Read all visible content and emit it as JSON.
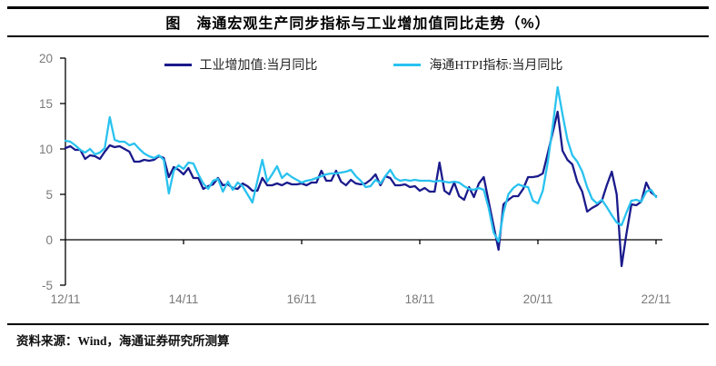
{
  "title": "图　海通宏观生产同步指标与工业增加值同比走势（%）",
  "source_note": "资料来源：Wind，海通证券研究所测算",
  "colors": {
    "industrial_line": "#1a1a8c",
    "htpi_line": "#29c2ef",
    "axis": "#000000",
    "tick_label": "#7a7a7a"
  },
  "legend": {
    "items": [
      {
        "label": "工业增加值:当月同比",
        "color": "#1a1a8c"
      },
      {
        "label": "海通HTPI指标:当月同比",
        "color": "#29c2ef"
      }
    ]
  },
  "chart_data": {
    "type": "line",
    "title": "海通宏观生产同步指标与工业增加值同比走势（%）",
    "x_start": "2012-11",
    "x_end": "2022-11",
    "x_frequency": "monthly",
    "x_tick_labels": [
      "12/11",
      "14/11",
      "16/11",
      "18/11",
      "20/11",
      "22/11"
    ],
    "y_ticks": [
      20,
      15,
      10,
      5,
      0,
      -5
    ],
    "ylim": [
      -5,
      20
    ],
    "grid": "zero-line-only",
    "legend_position": "top-center",
    "series": [
      {
        "id": "industrial",
        "name": "工业增加值:当月同比",
        "color": "#1a1a8c",
        "values": [
          10.1,
          10.3,
          9.9,
          9.9,
          8.9,
          9.3,
          9.2,
          8.9,
          9.7,
          10.4,
          10.2,
          10.3,
          10.0,
          9.7,
          8.6,
          8.6,
          8.8,
          8.7,
          8.8,
          9.2,
          9.0,
          6.9,
          8.0,
          7.7,
          7.2,
          7.9,
          6.8,
          6.8,
          5.6,
          5.9,
          6.1,
          6.8,
          6.0,
          6.1,
          5.7,
          5.6,
          6.2,
          5.9,
          5.4,
          5.4,
          6.8,
          6.0,
          6.0,
          6.2,
          6.0,
          6.3,
          6.1,
          6.1,
          6.2,
          6.0,
          6.3,
          6.3,
          7.6,
          6.5,
          6.5,
          7.6,
          6.4,
          6.0,
          6.6,
          6.2,
          6.1,
          6.2,
          6.6,
          7.2,
          6.0,
          7.0,
          6.8,
          6.0,
          6.0,
          6.1,
          5.8,
          5.9,
          5.4,
          5.7,
          5.3,
          5.3,
          8.5,
          5.4,
          5.0,
          6.3,
          4.8,
          4.4,
          5.8,
          4.7,
          6.2,
          6.9,
          4.2,
          1.5,
          -1.1,
          3.9,
          4.4,
          4.8,
          4.8,
          5.6,
          6.9,
          6.9,
          7.0,
          7.3,
          9.5,
          11.8,
          14.1,
          9.8,
          8.8,
          8.3,
          6.4,
          5.3,
          3.1,
          3.5,
          3.8,
          4.3,
          6.0,
          7.5,
          5.0,
          -2.9,
          0.7,
          3.9,
          3.8,
          4.2,
          6.3,
          5.2,
          4.8
        ]
      },
      {
        "id": "htpi",
        "name": "海通HTPI指标:当月同比",
        "color": "#29c2ef",
        "values": [
          10.9,
          10.8,
          10.4,
          9.9,
          9.6,
          10.0,
          9.4,
          9.6,
          10.1,
          13.5,
          11.0,
          10.8,
          10.8,
          10.4,
          10.6,
          10.0,
          9.5,
          9.2,
          9.0,
          9.3,
          8.8,
          5.1,
          7.6,
          8.2,
          7.8,
          8.5,
          8.4,
          7.2,
          6.2,
          5.6,
          6.5,
          6.7,
          5.3,
          6.4,
          5.5,
          6.3,
          5.9,
          5.0,
          4.1,
          6.5,
          8.8,
          6.4,
          7.2,
          8.1,
          6.8,
          7.3,
          6.9,
          6.6,
          6.3,
          6.5,
          6.6,
          6.8,
          7.0,
          7.2,
          7.3,
          7.3,
          7.4,
          7.5,
          7.7,
          7.0,
          6.5,
          5.8,
          5.9,
          6.6,
          6.2,
          7.0,
          7.7,
          6.8,
          6.5,
          6.6,
          6.5,
          6.6,
          6.5,
          6.5,
          6.5,
          6.4,
          6.5,
          6.4,
          6.3,
          6.4,
          6.3,
          5.9,
          5.6,
          5.5,
          5.7,
          5.5,
          3.5,
          0.8,
          -0.2,
          3.0,
          5.0,
          5.7,
          6.1,
          5.9,
          5.8,
          4.3,
          4.0,
          5.4,
          8.5,
          12.5,
          16.8,
          13.8,
          11.0,
          9.3,
          8.6,
          7.5,
          5.8,
          4.5,
          4.0,
          4.4,
          3.6,
          2.7,
          1.9,
          1.6,
          3.0,
          4.3,
          4.4,
          4.2,
          5.3,
          5.5,
          4.7
        ]
      }
    ]
  }
}
